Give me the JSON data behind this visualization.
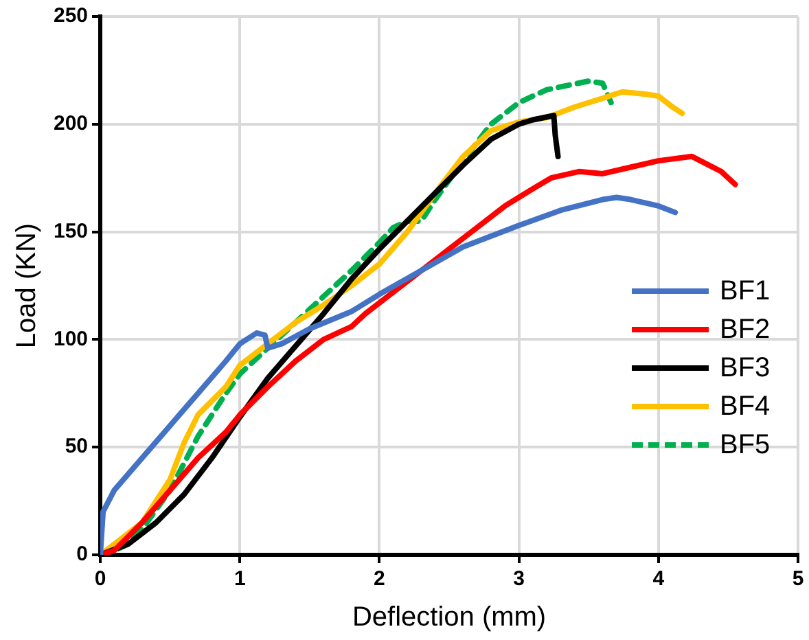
{
  "chart_data": {
    "type": "line",
    "xlabel": "Deflection (mm)",
    "ylabel": "Load (KN)",
    "xlim": [
      0,
      5
    ],
    "xticks": [
      0,
      1,
      2,
      3,
      4,
      5
    ],
    "ylim": [
      0,
      250
    ],
    "yticks": [
      0,
      50,
      100,
      150,
      200,
      250
    ],
    "grid": true,
    "legend": "right",
    "marker": "none",
    "series": [
      {
        "name": "BF1",
        "color": "#4472c4",
        "x": [
          0,
          0.02,
          0.1,
          0.3,
          0.5,
          0.7,
          0.9,
          1.0,
          1.12,
          1.18,
          1.2,
          1.3,
          1.5,
          1.8,
          2.0,
          2.3,
          2.6,
          3.0,
          3.3,
          3.6,
          3.7,
          3.8,
          4.0,
          4.12
        ],
        "values": [
          0,
          20,
          30,
          45,
          60,
          75,
          90,
          98,
          103,
          102,
          96,
          98,
          105,
          113,
          121,
          132,
          143,
          153,
          160,
          165,
          166,
          165,
          162,
          159
        ]
      },
      {
        "name": "BF2",
        "color": "#ff0000",
        "x": [
          0,
          0.1,
          0.3,
          0.5,
          0.7,
          0.9,
          1.0,
          1.2,
          1.4,
          1.6,
          1.8,
          1.9,
          2.1,
          2.3,
          2.5,
          2.7,
          2.9,
          3.1,
          3.23,
          3.43,
          3.6,
          3.8,
          4.0,
          4.24,
          4.3,
          4.45,
          4.55
        ],
        "values": [
          0,
          2,
          15,
          30,
          45,
          57,
          65,
          78,
          90,
          100,
          106,
          112,
          122,
          132,
          142,
          152,
          162,
          170,
          175,
          178,
          177,
          180,
          183,
          185,
          183,
          178,
          172
        ]
      },
      {
        "name": "BF3",
        "color": "#000000",
        "x": [
          0,
          0.2,
          0.4,
          0.6,
          0.8,
          1.0,
          1.2,
          1.4,
          1.6,
          1.8,
          2.0,
          2.2,
          2.4,
          2.6,
          2.8,
          3.0,
          3.1,
          3.25,
          3.26,
          3.28
        ],
        "values": [
          0,
          5,
          15,
          28,
          45,
          64,
          82,
          97,
          112,
          128,
          142,
          155,
          168,
          181,
          193,
          200,
          202,
          204,
          195,
          185
        ]
      },
      {
        "name": "BF4",
        "color": "#ffc000",
        "x": [
          0,
          0.1,
          0.3,
          0.5,
          0.6,
          0.7,
          0.9,
          1.0,
          1.2,
          1.4,
          1.6,
          1.8,
          2.0,
          2.2,
          2.4,
          2.6,
          2.8,
          3.0,
          3.2,
          3.4,
          3.6,
          3.74,
          3.9,
          4.0,
          4.1,
          4.17
        ],
        "values": [
          0,
          5,
          15,
          35,
          52,
          65,
          78,
          88,
          98,
          108,
          116,
          125,
          135,
          150,
          168,
          185,
          197,
          201,
          203,
          208,
          212,
          215,
          214,
          213,
          208,
          205
        ]
      },
      {
        "name": "BF5",
        "color": "#00b050",
        "line_style": "dashed",
        "x": [
          0,
          0.1,
          0.2,
          0.3,
          0.5,
          0.7,
          0.9,
          1.0,
          1.2,
          1.4,
          1.6,
          1.8,
          2.0,
          2.1,
          2.2,
          2.3,
          2.4,
          2.6,
          2.8,
          3.0,
          3.2,
          3.5,
          3.6,
          3.66
        ],
        "values": [
          0,
          2,
          5,
          12,
          30,
          55,
          75,
          84,
          96,
          108,
          120,
          132,
          145,
          152,
          155,
          155,
          165,
          183,
          200,
          210,
          216,
          220,
          219,
          210
        ]
      }
    ]
  }
}
